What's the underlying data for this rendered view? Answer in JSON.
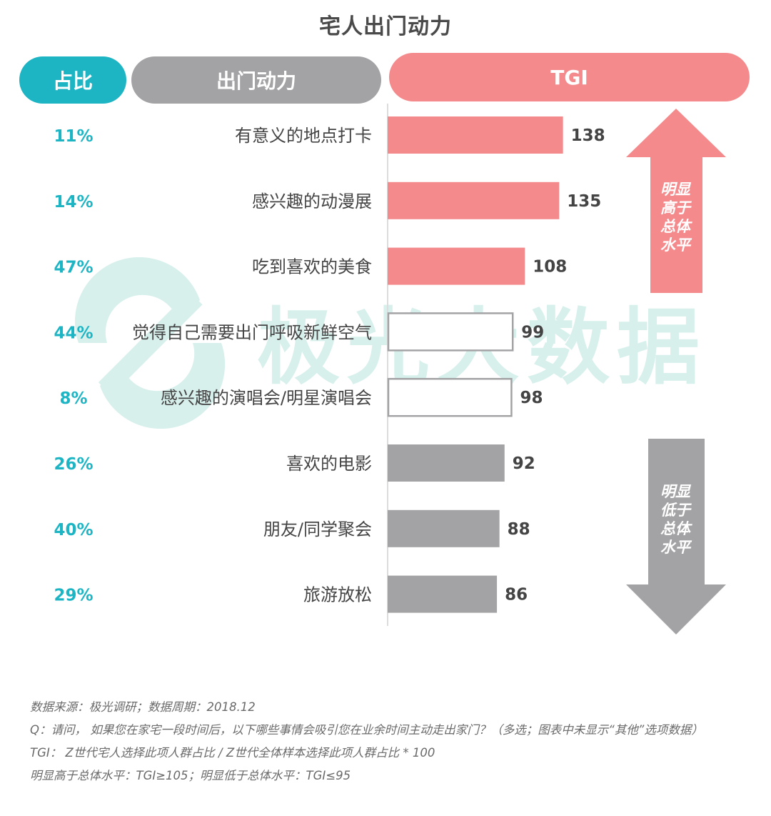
{
  "header": {
    "title": "宅人出门动力",
    "col_share": "占比",
    "col_motive": "出门动力",
    "col_tgi": "TGI"
  },
  "watermark": {
    "text": "极光大数据"
  },
  "chart_data": {
    "type": "bar",
    "orientation": "horizontal",
    "title": "宅人出门动力",
    "categories": [
      "有意义的地点打卡",
      "感兴趣的动漫展",
      "吃到喜欢的美食",
      "觉得自己需要出门呼吸新鲜空气",
      "感兴趣的演唱会/明星演唱会",
      "喜欢的电影",
      "朋友/同学聚会",
      "旅游放松"
    ],
    "shares": [
      "11%",
      "14%",
      "47%",
      "44%",
      "8%",
      "26%",
      "40%",
      "29%"
    ],
    "values": [
      138,
      135,
      108,
      99,
      98,
      92,
      88,
      86
    ],
    "categories_style": [
      "high",
      "high",
      "high",
      "neutral",
      "neutral",
      "low",
      "low",
      "low"
    ],
    "colors": {
      "high": "#f48a8c",
      "low": "#a3a3a5",
      "neutral_outline": "#a3a3a5",
      "share": "#1db4c4",
      "label": "#444444"
    },
    "xlim": [
      0,
      175
    ]
  },
  "arrows": {
    "up_text": [
      "明显",
      "高于",
      "总体",
      "水平"
    ],
    "down_text": [
      "明显",
      "低于",
      "总体",
      "水平"
    ]
  },
  "notes": {
    "source": "数据来源：极光调研；数据周期：2018.12",
    "question": "Q：请问， 如果您在家宅一段时间后，以下哪些事情会吸引您在业余时间主动走出家门？（多选；图表中未显示“其他”选项数据）",
    "tgi_def": "TGI： Z世代宅人选择此项人群占比 / Z世代全体样本选择此项人群占比 * 100",
    "threshold": "明显高于总体水平：TGI≥105；明显低于总体水平：TGI≤95"
  }
}
